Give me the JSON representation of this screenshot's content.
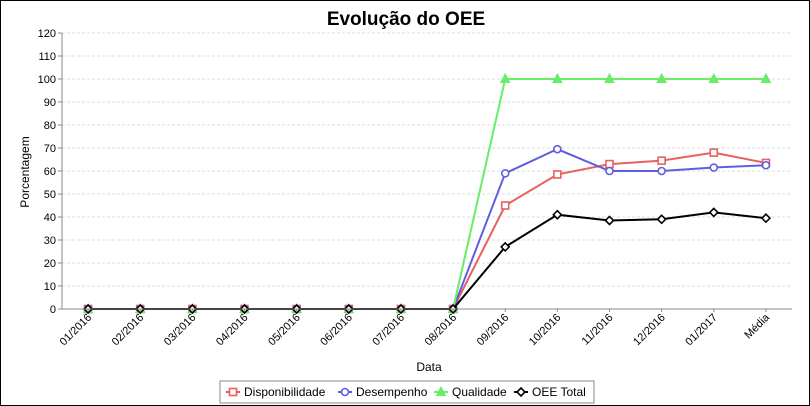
{
  "chart_data": {
    "type": "line",
    "title": "Evolução do OEE",
    "xlabel": "Data",
    "ylabel": "Porcentagem",
    "ylim": [
      0,
      120
    ],
    "yticks": [
      0,
      10,
      20,
      30,
      40,
      50,
      60,
      70,
      80,
      90,
      100,
      110,
      120
    ],
    "grid": true,
    "legend_position": "bottom",
    "categories": [
      "01/2016",
      "02/2016",
      "03/2016",
      "04/2016",
      "05/2016",
      "06/2016",
      "07/2016",
      "08/2016",
      "09/2016",
      "10/2016",
      "11/2016",
      "12/2016",
      "01/2017",
      "Média"
    ],
    "series": [
      {
        "name": "Disponibilidade",
        "color": "#e86060",
        "marker": "square",
        "values": [
          0,
          0,
          0,
          0,
          0,
          0,
          0,
          0,
          45,
          58.5,
          63,
          64.5,
          68,
          63.5
        ]
      },
      {
        "name": "Desempenho",
        "color": "#5e5ee0",
        "marker": "circle",
        "values": [
          0,
          0,
          0,
          0,
          0,
          0,
          0,
          0,
          59,
          69.5,
          60,
          60,
          61.5,
          62.5
        ]
      },
      {
        "name": "Qualidade",
        "color": "#66ee66",
        "marker": "triangle",
        "values": [
          0,
          0,
          0,
          0,
          0,
          0,
          0,
          0,
          100,
          100,
          100,
          100,
          100,
          100
        ]
      },
      {
        "name": "OEE Total",
        "color": "#000000",
        "marker": "diamond",
        "values": [
          0,
          0,
          0,
          0,
          0,
          0,
          0,
          0,
          27,
          41,
          38.5,
          39,
          42,
          39.5
        ]
      }
    ]
  }
}
